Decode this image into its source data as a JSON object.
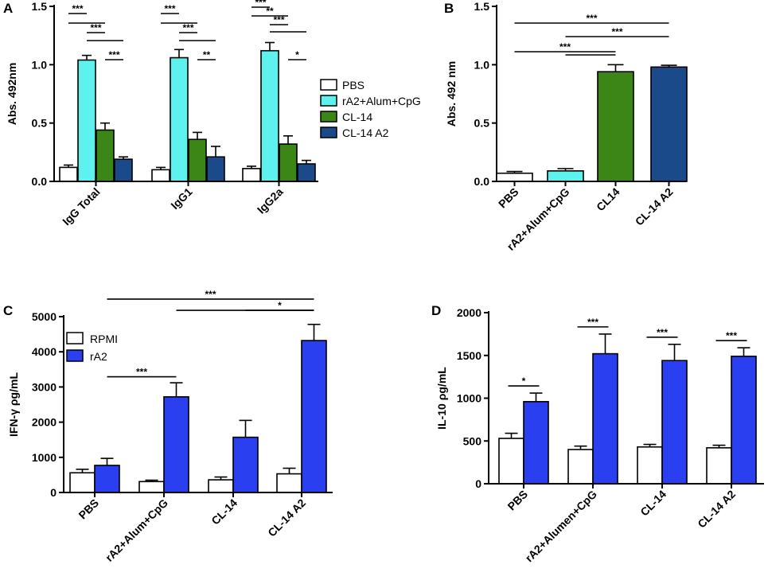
{
  "chart_data": [
    {
      "panel": "A",
      "type": "bar",
      "ylabel": "Abs. 492nm",
      "ylim": [
        0,
        1.5
      ],
      "yticks": [
        "0.0",
        "0.5",
        "1.0",
        "1.5"
      ],
      "categories": [
        "IgG Total",
        "IgG1",
        "IgG2a"
      ],
      "series": [
        {
          "name": "PBS",
          "color": "#ffffff",
          "values": [
            0.12,
            0.1,
            0.11
          ],
          "errors": [
            0.02,
            0.02,
            0.02
          ]
        },
        {
          "name": "rA2+Alum+CpG",
          "color": "#5ef2ee",
          "values": [
            1.04,
            1.06,
            1.12
          ],
          "errors": [
            0.04,
            0.07,
            0.07
          ]
        },
        {
          "name": "CL-14",
          "color": "#3b8616",
          "values": [
            0.44,
            0.36,
            0.32
          ],
          "errors": [
            0.06,
            0.06,
            0.07
          ]
        },
        {
          "name": "CL-14 A2",
          "color": "#1a4a8a",
          "values": [
            0.19,
            0.21,
            0.15
          ],
          "errors": [
            0.02,
            0.09,
            0.03
          ]
        }
      ],
      "significance": [
        {
          "group": 0,
          "from": 0,
          "to": 1,
          "label": "***"
        },
        {
          "group": 0,
          "from": 0,
          "to": 2,
          "label": ""
        },
        {
          "group": 0,
          "from": 1,
          "to": 2,
          "label": "***"
        },
        {
          "group": 0,
          "from": 1,
          "to": 3,
          "label": ""
        },
        {
          "group": 0,
          "from": 2,
          "to": 3,
          "label": "***"
        },
        {
          "group": 1,
          "from": 0,
          "to": 1,
          "label": "***"
        },
        {
          "group": 1,
          "from": 0,
          "to": 2,
          "label": ""
        },
        {
          "group": 1,
          "from": 1,
          "to": 2,
          "label": "***"
        },
        {
          "group": 1,
          "from": 1,
          "to": 3,
          "label": ""
        },
        {
          "group": 1,
          "from": 2,
          "to": 3,
          "label": "**"
        },
        {
          "group": 2,
          "from": 0,
          "to": 1,
          "label": "***"
        },
        {
          "group": 2,
          "from": 0,
          "to": 2,
          "label": "**"
        },
        {
          "group": 2,
          "from": 1,
          "to": 2,
          "label": "***"
        },
        {
          "group": 2,
          "from": 1,
          "to": 3,
          "label": ""
        },
        {
          "group": 2,
          "from": 2,
          "to": 3,
          "label": "*"
        }
      ],
      "legend": [
        "PBS",
        "rA2+Alum+CpG",
        "CL-14",
        "CL-14 A2"
      ]
    },
    {
      "panel": "B",
      "type": "bar",
      "ylabel": "Abs. 492 nm",
      "ylim": [
        0,
        1.5
      ],
      "yticks": [
        "0.0",
        "0.5",
        "1.0",
        "1.5"
      ],
      "categories": [
        "PBS",
        "rA2+Alum+CpG",
        "CL14",
        "CL-14 A2"
      ],
      "colors": [
        "#ffffff",
        "#5ef2ee",
        "#3b8616",
        "#1a4a8a"
      ],
      "values": [
        0.07,
        0.09,
        0.94,
        0.98
      ],
      "errors": [
        0.015,
        0.02,
        0.06,
        0.015
      ],
      "significance": [
        {
          "from": 0,
          "to": 3,
          "label": "***"
        },
        {
          "from": 1,
          "to": 3,
          "label": "***"
        },
        {
          "from": 0,
          "to": 2,
          "label": "***"
        },
        {
          "from": 1,
          "to": 2,
          "label": ""
        }
      ]
    },
    {
      "panel": "C",
      "type": "bar",
      "ylabel": "IFN-γ ρg/mL",
      "ylim": [
        0,
        5000
      ],
      "yticks": [
        "0",
        "1000",
        "2000",
        "3000",
        "4000",
        "5000"
      ],
      "categories": [
        "PBS",
        "rA2+Alum+CpG",
        "CL-14",
        "CL-14 A2"
      ],
      "series": [
        {
          "name": "RPMI",
          "color": "#ffffff",
          "values": [
            560,
            310,
            360,
            530
          ],
          "errors": [
            100,
            40,
            80,
            160
          ]
        },
        {
          "name": "rA2",
          "color": "#2a3ff0",
          "values": [
            770,
            2720,
            1570,
            4320
          ],
          "errors": [
            200,
            400,
            480,
            460
          ]
        }
      ],
      "significance": [
        {
          "y": 5500,
          "x1": [
            0,
            1
          ],
          "x2": [
            3,
            1
          ],
          "label": "***"
        },
        {
          "y": 5180,
          "x1": [
            1,
            1
          ],
          "x2": [
            3,
            1
          ],
          "label": ""
        },
        {
          "y": 5180,
          "x1": [
            2,
            1
          ],
          "x2": [
            3,
            1
          ],
          "label": "*"
        },
        {
          "y": 3290,
          "x1": [
            0,
            1
          ],
          "x2": [
            1,
            1
          ],
          "label": "***"
        }
      ],
      "legend": [
        "RPMI",
        "rA2"
      ]
    },
    {
      "panel": "D",
      "type": "bar",
      "ylabel": "IL-10 ρg/mL",
      "ylim": [
        0,
        2000
      ],
      "yticks": [
        "0",
        "500",
        "1000",
        "1500",
        "2000"
      ],
      "categories": [
        "PBS",
        "rA2+Alumen+CpG",
        "CL-14",
        "CL-14 A2"
      ],
      "series": [
        {
          "name": "RPMI",
          "color": "#ffffff",
          "values": [
            530,
            400,
            430,
            420
          ],
          "errors": [
            60,
            40,
            30,
            30
          ]
        },
        {
          "name": "rA2",
          "color": "#2a3ff0",
          "values": [
            960,
            1520,
            1440,
            1490
          ],
          "errors": [
            100,
            230,
            190,
            100
          ]
        }
      ],
      "significance": [
        {
          "x": 0,
          "label": "*"
        },
        {
          "x": 1,
          "label": "***"
        },
        {
          "x": 2,
          "label": "***"
        },
        {
          "x": 3,
          "label": "***"
        }
      ]
    }
  ]
}
